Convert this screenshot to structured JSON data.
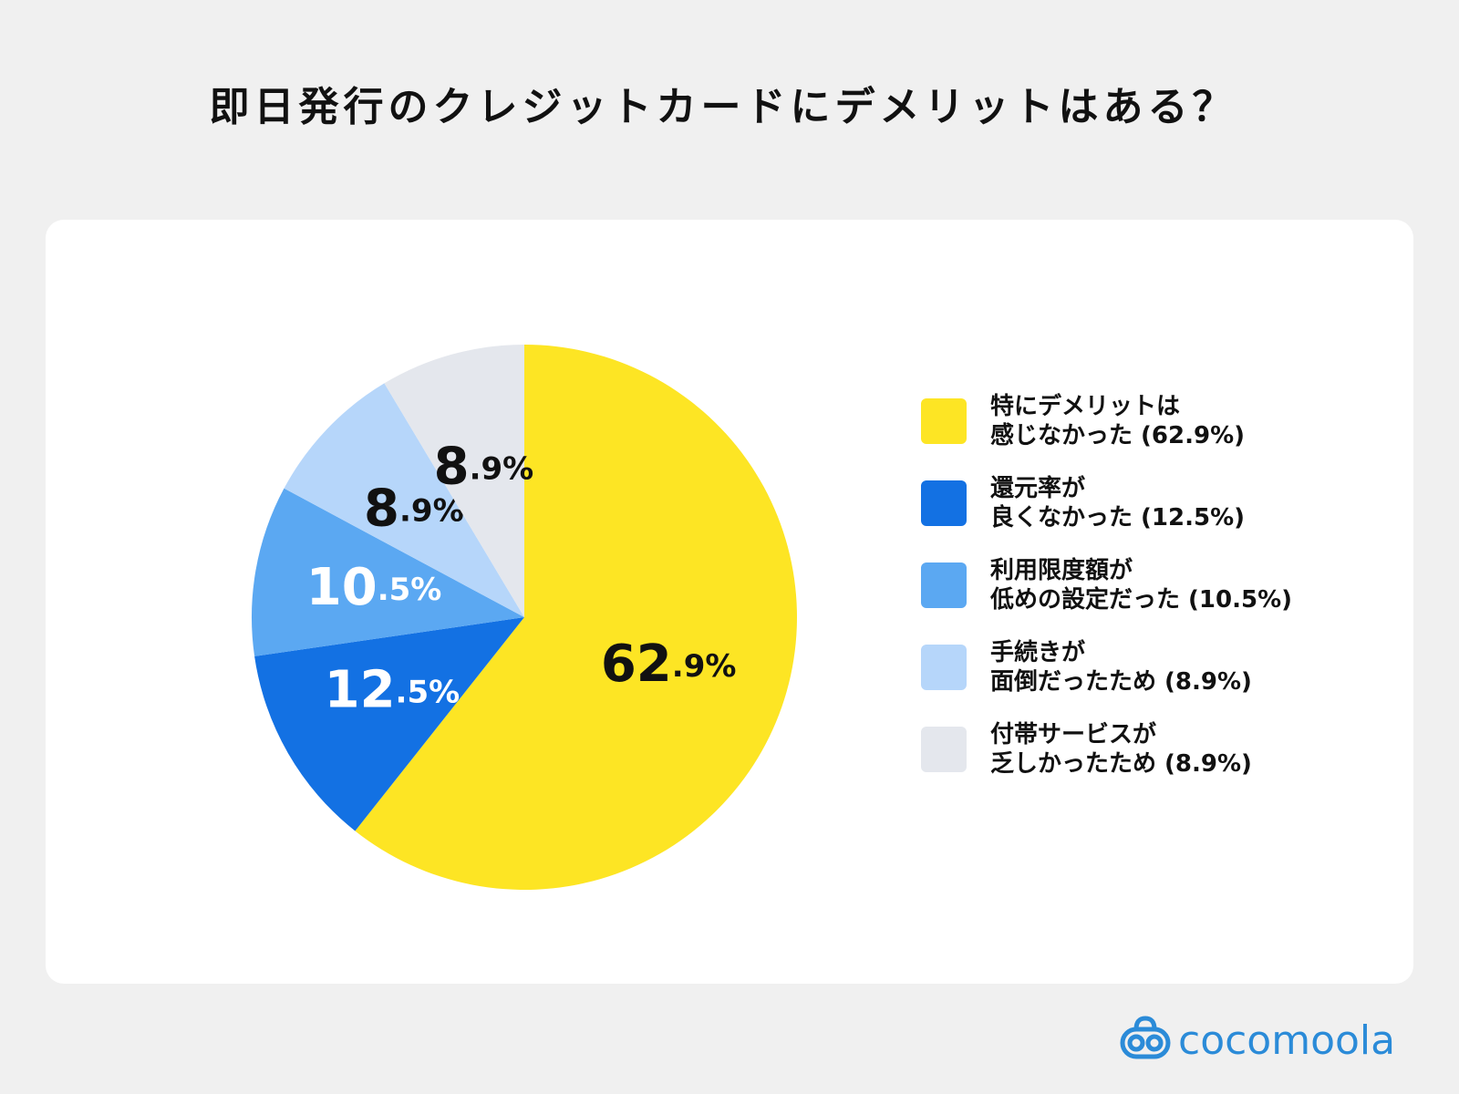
{
  "chart_data": {
    "type": "pie",
    "title": "即日発行のクレジットカードにデメリットはある？",
    "series": [
      {
        "name": "特にデメリットは\n感じなかった (62.9%)",
        "color": "#fde524"
      },
      {
        "name": "還元率が\n良くなかった (12.5%)",
        "color": "#1371e3"
      },
      {
        "name": "利用限度額が\n低めの設定だった (10.5%)",
        "color": "#5ba8f2"
      },
      {
        "name": "手続きが\n面倒だったため (8.9%)",
        "color": "#b6d6fa"
      },
      {
        "name": "付帯サービスが\n乏しかったため (8.9%)",
        "color": "#e4e7ed"
      }
    ],
    "values": [
      62.9,
      12.5,
      10.5,
      8.9,
      8.9
    ],
    "value_labels": [
      "62.9%",
      "12.5%",
      "10.5%",
      "8.9%",
      "8.9%"
    ],
    "legend": "right",
    "brand": "cocomoola"
  }
}
